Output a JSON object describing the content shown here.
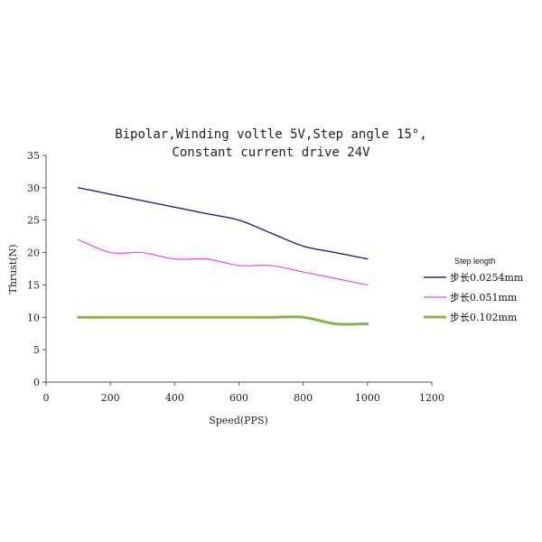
{
  "chart_data": {
    "type": "line",
    "title_lines": [
      "Bipolar,Winding voltle 5V,Step angle 15°,",
      "Constant current drive 24V"
    ],
    "xlabel": "Speed(PPS)",
    "ylabel": "Thrust(N)",
    "xlim": [
      0,
      1200
    ],
    "ylim": [
      0,
      35
    ],
    "x_ticks": [
      0,
      200,
      400,
      600,
      800,
      1000,
      1200
    ],
    "y_ticks": [
      0,
      5,
      10,
      15,
      20,
      25,
      30,
      35
    ],
    "grid": false,
    "legend_position": "right",
    "legend_title": "Step length",
    "series": [
      {
        "name": "步长0.0254mm",
        "color": "#1f2a7a",
        "x": [
          100,
          200,
          300,
          400,
          500,
          600,
          700,
          800,
          900,
          1000
        ],
        "y": [
          30,
          29,
          28,
          27,
          26,
          25,
          23,
          21,
          20,
          19
        ]
      },
      {
        "name": "步长0.051mm",
        "color": "#ee44ee",
        "x": [
          100,
          200,
          300,
          400,
          500,
          600,
          700,
          800,
          900,
          1000
        ],
        "y": [
          22,
          20,
          20,
          19,
          19,
          18,
          18,
          17,
          16,
          15
        ]
      },
      {
        "name": "步长0.102mm",
        "color": "#8db04a",
        "x": [
          100,
          200,
          300,
          400,
          500,
          600,
          700,
          800,
          900,
          1000
        ],
        "y": [
          10,
          10,
          10,
          10,
          10,
          10,
          10,
          10,
          9,
          9
        ]
      }
    ]
  }
}
